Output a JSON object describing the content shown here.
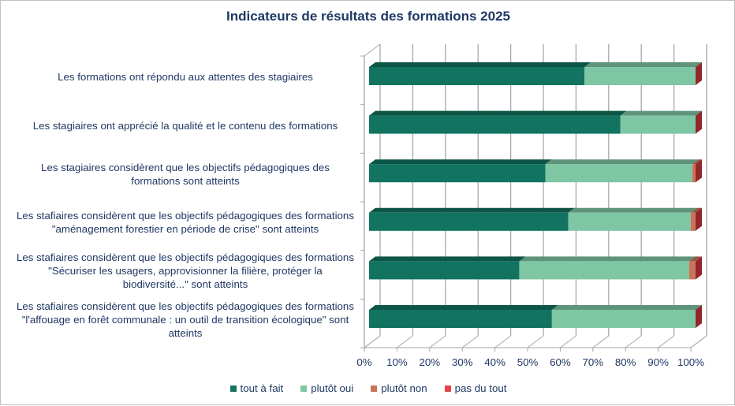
{
  "chart_data": {
    "type": "bar",
    "orientation": "horizontal",
    "stacked": "100%",
    "style": "3d",
    "title": "Indicateurs de résultats des formations 2025",
    "xlabel": "",
    "ylabel": "",
    "xlim": [
      0,
      100
    ],
    "x_tick_labels": [
      "0%",
      "10%",
      "20%",
      "30%",
      "40%",
      "50%",
      "60%",
      "70%",
      "80%",
      "90%",
      "100%"
    ],
    "grid": true,
    "legend_position": "bottom",
    "categories": [
      "Les formations ont répondu aux attentes des stagiaires",
      "Les stagiaires ont apprécié la qualité et le contenu des formations",
      "Les stagiaires considèrent que les objectifs pédagogiques des formations sont atteints",
      "Les stafiaires considèrent que les objectifs pédagogiques des formations \"aménagement forestier en période de crise\" sont atteints",
      "Les stafiaires considèrent que les objectifs pédagogiques des formations \"Sécuriser les usagers, approvisionner la filière, protéger la biodiversité...\" sont atteints",
      "Les stafiaires considèrent que les objectifs pédagogiques des formations \"l'affouage en forêt communale : un outil de transition écologique\" sont atteints"
    ],
    "category_label_lines": [
      [
        "Les formations ont répondu aux attentes des stagiaires"
      ],
      [
        "Les stagiaires ont apprécié la qualité et le contenu des formations"
      ],
      [
        "Les stagiaires considèrent que les objectifs pédagogiques des",
        "formations sont atteints"
      ],
      [
        "Les stafiaires considèrent que les objectifs pédagogiques des formations",
        "\"aménagement forestier en période de crise\" sont atteints"
      ],
      [
        "Les stafiaires considèrent que les objectifs pédagogiques des formations",
        "\"Sécuriser les usagers, approvisionner la filière, protéger la",
        "biodiversité...\" sont atteints"
      ],
      [
        "Les stafiaires considèrent que les objectifs pédagogiques des formations",
        "\"l'affouage en forêt communale : un outil de transition écologique\" sont",
        "atteints"
      ]
    ],
    "series": [
      {
        "name": "tout à fait",
        "color": "#127460",
        "top_color": "#0d5546",
        "values": [
          66,
          77,
          54,
          61,
          46,
          56
        ]
      },
      {
        "name": "plutôt oui",
        "color": "#7fc6a4",
        "top_color": "#5f947b",
        "values": [
          34,
          23,
          45,
          37.5,
          52,
          44
        ]
      },
      {
        "name": "plutôt non",
        "color": "#c8735a",
        "top_color": "#965643",
        "values": [
          0,
          0,
          1,
          1.5,
          2,
          0
        ]
      },
      {
        "name": "pas du tout",
        "color": "#e8424a",
        "top_color": "#93272c",
        "values": [
          0,
          0,
          0,
          0,
          0,
          0
        ]
      }
    ]
  },
  "legend_labels": [
    "tout à fait",
    "plutôt oui",
    "plutôt non",
    "pas du tout"
  ],
  "legend_colors": [
    "#127460",
    "#7fc6a4",
    "#c8735a",
    "#e8424a"
  ],
  "axis_color": "#a6a6b0",
  "text_color": "#1f3864"
}
